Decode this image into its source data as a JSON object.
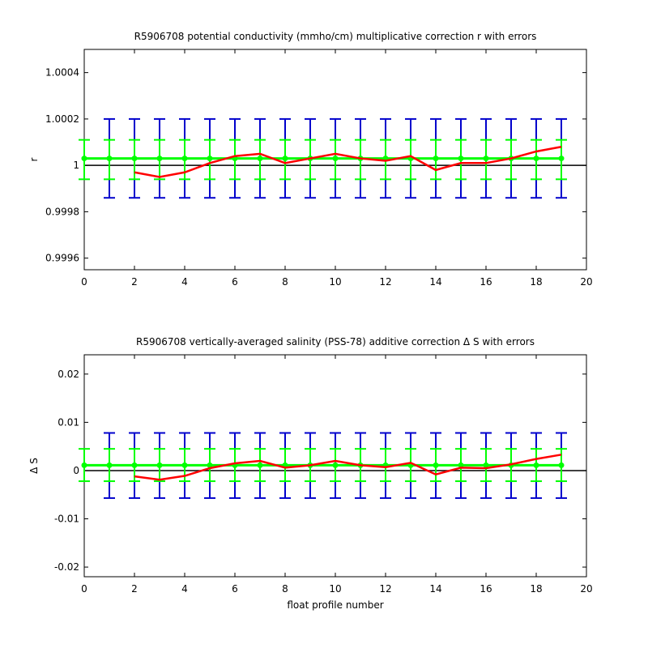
{
  "chart_data": [
    {
      "type": "line",
      "title": "R5906708 potential conductivity (mmho/cm) multiplicative correction r with errors",
      "xlabel": "",
      "ylabel": "r",
      "xlim": [
        0,
        20
      ],
      "ylim": [
        0.99955,
        1.0005
      ],
      "xticks": [
        0,
        2,
        4,
        6,
        8,
        10,
        12,
        14,
        16,
        18,
        20
      ],
      "xtick_labels": [
        "0",
        "2",
        "4",
        "6",
        "8",
        "10",
        "12",
        "14",
        "16",
        "18",
        "20"
      ],
      "yticks": [
        0.9996,
        0.9998,
        1.0,
        1.0002,
        1.0004
      ],
      "ytick_labels": [
        "0.9996",
        "0.9998",
        "1",
        "1.0002",
        "1.0004"
      ],
      "reference_line": 1.0,
      "grid": false,
      "legend": "none",
      "series": [
        {
          "color": "#ff0000",
          "x": [
            2,
            3,
            4,
            5,
            6,
            7,
            8,
            9,
            10,
            11,
            12,
            13,
            14,
            15,
            16,
            17,
            18,
            19
          ],
          "values": [
            0.99997,
            0.99995,
            0.99997,
            1.00001,
            1.00004,
            1.00005,
            1.00001,
            1.00003,
            1.00005,
            1.00003,
            1.00002,
            1.00004,
            0.99998,
            1.00001,
            1.00001,
            1.00003,
            1.00006,
            1.00008
          ]
        },
        {
          "color": "#00ff00",
          "x": [
            0,
            1,
            2,
            3,
            4,
            5,
            6,
            7,
            8,
            9,
            10,
            11,
            12,
            13,
            14,
            15,
            16,
            17,
            18,
            19
          ],
          "values": [
            1.00003,
            1.00003,
            1.00003,
            1.00003,
            1.00003,
            1.00003,
            1.00003,
            1.00003,
            1.00003,
            1.00003,
            1.00003,
            1.00003,
            1.00003,
            1.00003,
            1.00003,
            1.00003,
            1.00003,
            1.00003,
            1.00003,
            1.00003
          ]
        }
      ],
      "error_bars": [
        {
          "color": "#0000cc",
          "x": [
            1,
            2,
            3,
            4,
            5,
            6,
            7,
            8,
            9,
            10,
            11,
            12,
            13,
            14,
            15,
            16,
            17,
            18,
            19
          ],
          "lower": 0.99986,
          "upper": 1.0002
        },
        {
          "color": "#00ff00",
          "x": [
            0,
            1,
            2,
            3,
            4,
            5,
            6,
            7,
            8,
            9,
            10,
            11,
            12,
            13,
            14,
            15,
            16,
            17,
            18,
            19
          ],
          "lower": 0.99994,
          "upper": 1.00011
        }
      ]
    },
    {
      "type": "line",
      "title": "R5906708 vertically-averaged salinity (PSS-78) additive correction Δ S with errors",
      "xlabel": "float profile number",
      "ylabel": "Δ S",
      "xlim": [
        0,
        20
      ],
      "ylim": [
        -0.022,
        0.024
      ],
      "xticks": [
        0,
        2,
        4,
        6,
        8,
        10,
        12,
        14,
        16,
        18,
        20
      ],
      "xtick_labels": [
        "0",
        "2",
        "4",
        "6",
        "8",
        "10",
        "12",
        "14",
        "16",
        "18",
        "20"
      ],
      "yticks": [
        -0.02,
        -0.01,
        0,
        0.01,
        0.02
      ],
      "ytick_labels": [
        "-0.02",
        "-0.01",
        "0",
        "0.01",
        "0.02"
      ],
      "reference_line": 0,
      "grid": false,
      "legend": "none",
      "series": [
        {
          "color": "#ff0000",
          "x": [
            2,
            3,
            4,
            5,
            6,
            7,
            8,
            9,
            10,
            11,
            12,
            13,
            14,
            15,
            16,
            17,
            18,
            19
          ],
          "values": [
            -0.0012,
            -0.0019,
            -0.0011,
            0.0005,
            0.0015,
            0.002,
            0.0006,
            0.0011,
            0.002,
            0.0011,
            0.0007,
            0.0016,
            -0.0008,
            0.0006,
            0.0005,
            0.0013,
            0.0024,
            0.0033
          ]
        },
        {
          "color": "#00ff00",
          "x": [
            0,
            1,
            2,
            3,
            4,
            5,
            6,
            7,
            8,
            9,
            10,
            11,
            12,
            13,
            14,
            15,
            16,
            17,
            18,
            19
          ],
          "values": [
            0.0011,
            0.0011,
            0.0011,
            0.0011,
            0.0011,
            0.0011,
            0.0011,
            0.0011,
            0.0011,
            0.0011,
            0.0011,
            0.0011,
            0.0011,
            0.0011,
            0.0011,
            0.0011,
            0.0011,
            0.0011,
            0.0011,
            0.0011
          ]
        }
      ],
      "error_bars": [
        {
          "color": "#0000cc",
          "x": [
            1,
            2,
            3,
            4,
            5,
            6,
            7,
            8,
            9,
            10,
            11,
            12,
            13,
            14,
            15,
            16,
            17,
            18,
            19
          ],
          "lower": -0.0057,
          "upper": 0.0078
        },
        {
          "color": "#00ff00",
          "x": [
            0,
            1,
            2,
            3,
            4,
            5,
            6,
            7,
            8,
            9,
            10,
            11,
            12,
            13,
            14,
            15,
            16,
            17,
            18,
            19
          ],
          "lower": -0.0022,
          "upper": 0.0045
        }
      ]
    }
  ]
}
